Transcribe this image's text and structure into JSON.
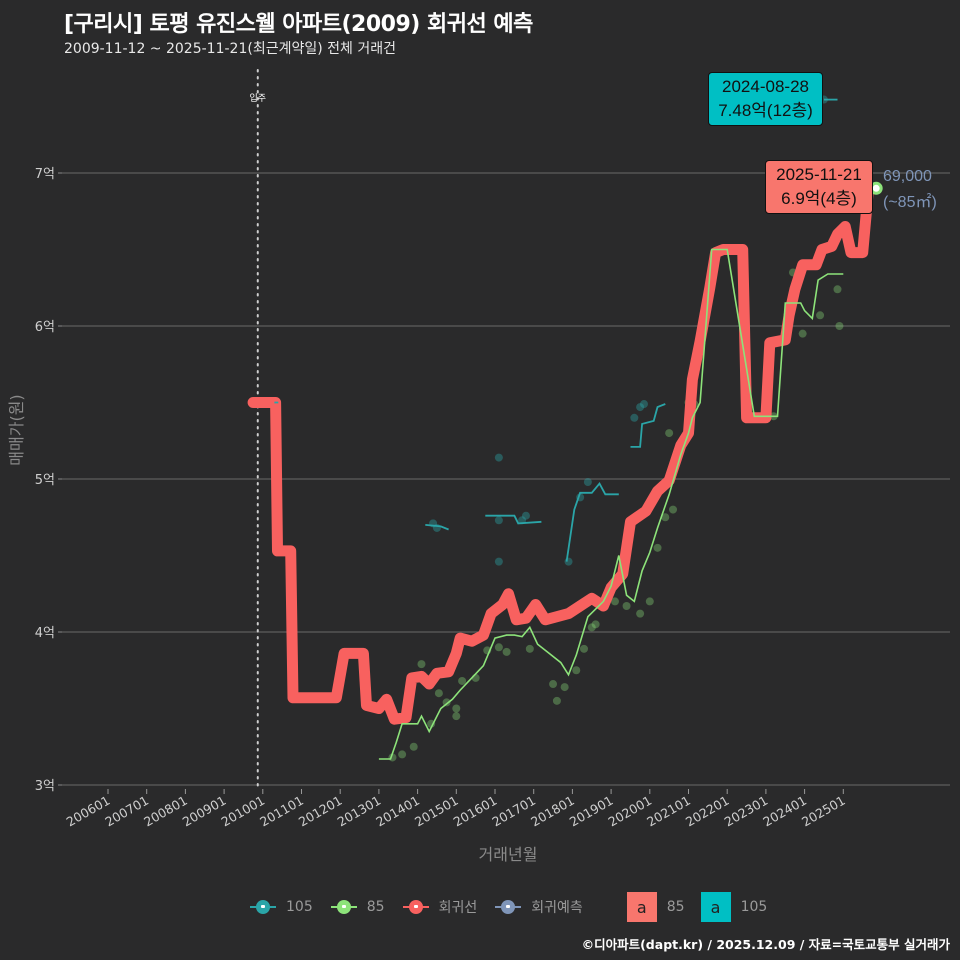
{
  "header": {
    "title": "[구리시] 토평 유진스웰 아파트(2009) 회귀선 예측",
    "subtitle": "2009-11-12 ~ 2025-11-21(최근계약일) 전체 거래건"
  },
  "colors": {
    "background": "#2a2a2b",
    "gridline": "#5a5a5a",
    "regression": "#f8615f",
    "area85": "#8de37a",
    "area105": "#2aa5a8",
    "prediction": "#7f95b8",
    "callout85": "#f8766d",
    "callout105": "#00bfc4"
  },
  "annotations": {
    "move_in_label": "입주",
    "callout_105": {
      "date": "2024-08-28",
      "price": "7.48억(12층)"
    },
    "callout_85": {
      "date": "2025-11-21",
      "price": "6.9억(4층)"
    },
    "prediction_value": "69,000",
    "prediction_area": "(~85㎡)"
  },
  "legend": {
    "items": [
      {
        "label": "105",
        "color": "#2aa5a8"
      },
      {
        "label": "85",
        "color": "#8de37a"
      },
      {
        "label": "회귀선",
        "color": "#f8615f"
      },
      {
        "label": "회귀예측",
        "color": "#7f95b8"
      }
    ],
    "boxes": [
      {
        "glyph": "a",
        "label": "85",
        "color": "#f8766d"
      },
      {
        "glyph": "a",
        "label": "105",
        "color": "#00bfc4"
      }
    ]
  },
  "footer": {
    "credit": "©디아파트(dapt.kr) / 2025.12.09 / 자료=국토교통부 실거래가"
  },
  "chart_data": {
    "type": "line",
    "title": "[구리시] 토평 유진스웰 아파트(2009) 회귀선 예측",
    "subtitle": "2009-11-12 ~ 2025-11-21(최근계약일) 전체 거래건",
    "xlabel": "거래년월",
    "ylabel": "매매가(원)",
    "ylim": [
      3.0,
      7.6
    ],
    "y_ticks": [
      "3억",
      "4억",
      "5억",
      "6억",
      "7억"
    ],
    "y_tick_values": [
      3,
      4,
      5,
      6,
      7
    ],
    "x_ticks": [
      "200601",
      "200701",
      "200801",
      "200901",
      "201001",
      "201101",
      "201201",
      "201301",
      "201401",
      "201501",
      "201601",
      "201701",
      "201801",
      "201901",
      "202001",
      "202101",
      "202201",
      "202301",
      "202401",
      "202501"
    ],
    "grid": true,
    "legend_position": "bottom",
    "vline": {
      "x": 2009.87,
      "label": "입주"
    },
    "series": [
      {
        "name": "회귀선",
        "style": "thick-step",
        "points": [
          [
            2009.75,
            5.5
          ],
          [
            2010.33,
            5.5
          ],
          [
            2010.38,
            4.53
          ],
          [
            2010.72,
            4.53
          ],
          [
            2010.78,
            3.57
          ],
          [
            2011.9,
            3.57
          ],
          [
            2012.1,
            3.86
          ],
          [
            2012.6,
            3.86
          ],
          [
            2012.68,
            3.52
          ],
          [
            2013.0,
            3.5
          ],
          [
            2013.2,
            3.56
          ],
          [
            2013.4,
            3.43
          ],
          [
            2013.7,
            3.44
          ],
          [
            2013.85,
            3.7
          ],
          [
            2014.1,
            3.71
          ],
          [
            2014.3,
            3.66
          ],
          [
            2014.5,
            3.73
          ],
          [
            2014.8,
            3.74
          ],
          [
            2015.0,
            3.86
          ],
          [
            2015.1,
            3.96
          ],
          [
            2015.4,
            3.94
          ],
          [
            2015.7,
            3.98
          ],
          [
            2015.9,
            4.12
          ],
          [
            2016.2,
            4.18
          ],
          [
            2016.35,
            4.25
          ],
          [
            2016.55,
            4.08
          ],
          [
            2016.8,
            4.09
          ],
          [
            2017.05,
            4.18
          ],
          [
            2017.3,
            4.08
          ],
          [
            2017.6,
            4.1
          ],
          [
            2017.9,
            4.12
          ],
          [
            2018.2,
            4.17
          ],
          [
            2018.5,
            4.22
          ],
          [
            2018.8,
            4.17
          ],
          [
            2019.0,
            4.29
          ],
          [
            2019.3,
            4.38
          ],
          [
            2019.5,
            4.72
          ],
          [
            2019.9,
            4.79
          ],
          [
            2020.2,
            4.92
          ],
          [
            2020.5,
            4.99
          ],
          [
            2020.8,
            5.22
          ],
          [
            2021.0,
            5.3
          ],
          [
            2021.1,
            5.65
          ],
          [
            2021.3,
            5.9
          ],
          [
            2021.55,
            6.25
          ],
          [
            2021.7,
            6.48
          ],
          [
            2021.9,
            6.5
          ],
          [
            2022.4,
            6.5
          ],
          [
            2022.5,
            5.4
          ],
          [
            2023.0,
            5.4
          ],
          [
            2023.1,
            5.89
          ],
          [
            2023.5,
            5.91
          ],
          [
            2023.6,
            6.07
          ],
          [
            2023.75,
            6.24
          ],
          [
            2023.95,
            6.4
          ],
          [
            2024.3,
            6.4
          ],
          [
            2024.45,
            6.5
          ],
          [
            2024.7,
            6.52
          ],
          [
            2024.85,
            6.6
          ],
          [
            2025.05,
            6.65
          ],
          [
            2025.2,
            6.48
          ],
          [
            2025.5,
            6.48
          ],
          [
            2025.65,
            6.9
          ]
        ]
      },
      {
        "name": "85",
        "style": "thin-line",
        "points": [
          [
            2013.0,
            3.17
          ],
          [
            2013.3,
            3.17
          ],
          [
            2013.45,
            3.28
          ],
          [
            2013.6,
            3.4
          ],
          [
            2014.0,
            3.4
          ],
          [
            2014.1,
            3.45
          ],
          [
            2014.3,
            3.35
          ],
          [
            2014.6,
            3.5
          ],
          [
            2014.9,
            3.56
          ],
          [
            2015.1,
            3.62
          ],
          [
            2015.4,
            3.7
          ],
          [
            2015.7,
            3.78
          ],
          [
            2016.0,
            3.96
          ],
          [
            2016.3,
            3.98
          ],
          [
            2016.5,
            3.98
          ],
          [
            2016.7,
            3.97
          ],
          [
            2016.9,
            4.03
          ],
          [
            2017.1,
            3.92
          ],
          [
            2017.4,
            3.86
          ],
          [
            2017.7,
            3.8
          ],
          [
            2017.9,
            3.72
          ],
          [
            2018.1,
            3.85
          ],
          [
            2018.4,
            4.1
          ],
          [
            2018.8,
            4.2
          ],
          [
            2019.0,
            4.3
          ],
          [
            2019.2,
            4.5
          ],
          [
            2019.4,
            4.24
          ],
          [
            2019.6,
            4.2
          ],
          [
            2019.8,
            4.4
          ],
          [
            2020.0,
            4.52
          ],
          [
            2020.2,
            4.68
          ],
          [
            2020.5,
            4.9
          ],
          [
            2020.8,
            5.16
          ],
          [
            2021.0,
            5.3
          ],
          [
            2021.1,
            5.4
          ],
          [
            2021.3,
            5.5
          ],
          [
            2021.6,
            6.5
          ],
          [
            2022.0,
            6.5
          ],
          [
            2022.7,
            5.41
          ],
          [
            2023.3,
            5.41
          ],
          [
            2023.5,
            6.15
          ],
          [
            2023.9,
            6.15
          ],
          [
            2024.0,
            6.1
          ],
          [
            2024.2,
            6.05
          ],
          [
            2024.35,
            6.3
          ],
          [
            2024.6,
            6.34
          ],
          [
            2025.0,
            6.34
          ]
        ]
      },
      {
        "name": "105",
        "style": "thin-line-segments",
        "segments": [
          [
            [
              2010.3,
              5.5
            ],
            [
              2010.4,
              5.5
            ]
          ],
          [
            [
              2014.2,
              4.7
            ],
            [
              2014.6,
              4.69
            ],
            [
              2014.8,
              4.67
            ]
          ],
          [
            [
              2015.75,
              4.76
            ],
            [
              2016.5,
              4.76
            ],
            [
              2016.6,
              4.71
            ],
            [
              2017.2,
              4.72
            ]
          ],
          [
            [
              2017.85,
              4.46
            ],
            [
              2018.05,
              4.8
            ],
            [
              2018.2,
              4.91
            ],
            [
              2018.5,
              4.91
            ],
            [
              2018.7,
              4.97
            ],
            [
              2018.85,
              4.9
            ],
            [
              2019.2,
              4.9
            ]
          ],
          [
            [
              2019.5,
              5.21
            ],
            [
              2019.75,
              5.21
            ],
            [
              2019.8,
              5.36
            ],
            [
              2020.1,
              5.38
            ],
            [
              2020.2,
              5.47
            ],
            [
              2020.4,
              5.49
            ]
          ],
          [
            [
              2024.5,
              7.48
            ],
            [
              2024.85,
              7.48
            ]
          ]
        ]
      },
      {
        "name": "85-trades",
        "style": "points",
        "points": [
          [
            2013.35,
            3.18
          ],
          [
            2013.6,
            3.2
          ],
          [
            2013.9,
            3.25
          ],
          [
            2014.1,
            3.79
          ],
          [
            2014.35,
            3.4
          ],
          [
            2014.55,
            3.6
          ],
          [
            2014.75,
            3.54
          ],
          [
            2015.0,
            3.5
          ],
          [
            2015.0,
            3.45
          ],
          [
            2015.15,
            3.68
          ],
          [
            2015.5,
            3.7
          ],
          [
            2015.8,
            3.88
          ],
          [
            2016.1,
            3.9
          ],
          [
            2016.3,
            3.87
          ],
          [
            2016.9,
            3.89
          ],
          [
            2017.5,
            3.66
          ],
          [
            2017.6,
            3.55
          ],
          [
            2017.8,
            3.64
          ],
          [
            2018.1,
            3.75
          ],
          [
            2018.3,
            3.89
          ],
          [
            2018.5,
            4.03
          ],
          [
            2018.6,
            4.05
          ],
          [
            2019.1,
            4.2
          ],
          [
            2019.4,
            4.17
          ],
          [
            2019.75,
            4.12
          ],
          [
            2020.0,
            4.2
          ],
          [
            2020.2,
            4.55
          ],
          [
            2020.4,
            4.75
          ],
          [
            2020.5,
            5.3
          ],
          [
            2020.6,
            4.8
          ],
          [
            2021.0,
            5.5
          ],
          [
            2021.15,
            5.49
          ],
          [
            2023.2,
            5.41
          ],
          [
            2023.7,
            6.35
          ],
          [
            2023.95,
            5.95
          ],
          [
            2024.4,
            6.07
          ],
          [
            2024.85,
            6.24
          ],
          [
            2024.9,
            6.0
          ]
        ]
      },
      {
        "name": "105-trades",
        "style": "points",
        "points": [
          [
            2014.4,
            4.71
          ],
          [
            2014.5,
            4.68
          ],
          [
            2016.1,
            5.14
          ],
          [
            2016.1,
            4.73
          ],
          [
            2016.1,
            4.46
          ],
          [
            2016.7,
            4.73
          ],
          [
            2016.8,
            4.76
          ],
          [
            2017.9,
            4.46
          ],
          [
            2018.2,
            4.88
          ],
          [
            2018.4,
            4.98
          ],
          [
            2019.6,
            5.4
          ],
          [
            2019.75,
            5.47
          ],
          [
            2019.85,
            5.49
          ],
          [
            2024.5,
            7.48
          ]
        ]
      },
      {
        "name": "회귀예측",
        "style": "point",
        "points": [
          [
            2025.85,
            6.9
          ]
        ]
      }
    ]
  }
}
